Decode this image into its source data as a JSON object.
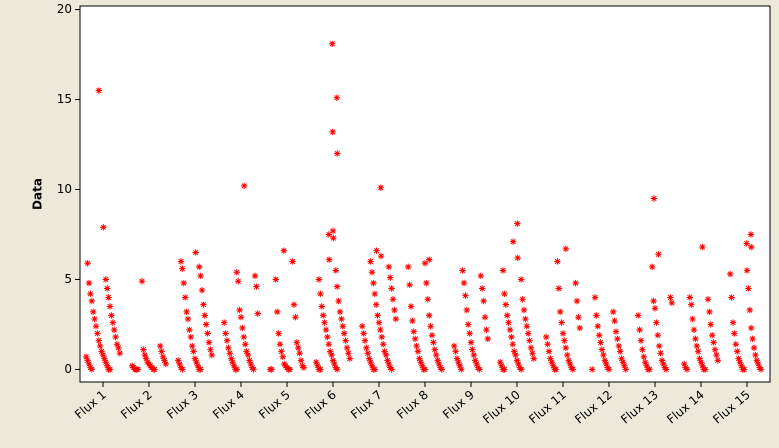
{
  "chart_data": {
    "type": "strip",
    "y_label": "Data",
    "categories": [
      "Flux 1",
      "Flux 2",
      "Flux 3",
      "Flux 4",
      "Flux 5",
      "Flux 6",
      "Flux 7",
      "Flux 8",
      "Flux 9",
      "Flux 10",
      "Flux 11",
      "Flux 12",
      "Flux 13",
      "Flux 14",
      "Flux 15"
    ],
    "values": [
      [
        15.5,
        7.9,
        5.9,
        5.0,
        4.8,
        4.5,
        4.2,
        4.0,
        3.8,
        3.5,
        3.2,
        3.0,
        2.8,
        2.6,
        2.4,
        2.2,
        2.0,
        1.8,
        1.6,
        1.4,
        1.3,
        1.2,
        1.0,
        0.9,
        0.8,
        0.7,
        0.6,
        0.5,
        0.4,
        0.3,
        0.2,
        0.1,
        0,
        0,
        0
      ],
      [
        4.9,
        1.3,
        1.1,
        1.0,
        0.8,
        0.7,
        0.6,
        0.5,
        0.4,
        0.3,
        0.3,
        0.2,
        0.2,
        0.1,
        0.1,
        0,
        0,
        0,
        0,
        0
      ],
      [
        6.5,
        6.0,
        5.7,
        5.6,
        5.2,
        4.8,
        4.4,
        4.0,
        3.6,
        3.2,
        3.0,
        2.8,
        2.5,
        2.2,
        2.0,
        1.8,
        1.5,
        1.3,
        1.1,
        1.0,
        0.8,
        0.6,
        0.5,
        0.4,
        0.3,
        0.2,
        0.1,
        0,
        0,
        0
      ],
      [
        10.2,
        5.4,
        5.2,
        4.9,
        4.6,
        3.3,
        3.1,
        2.9,
        2.6,
        2.3,
        2.0,
        1.8,
        1.6,
        1.4,
        1.2,
        1.0,
        0.9,
        0.8,
        0.6,
        0.5,
        0.4,
        0.3,
        0.2,
        0.1,
        0,
        0,
        0
      ],
      [
        6.6,
        6.0,
        5.0,
        3.6,
        3.2,
        2.9,
        2.0,
        1.5,
        1.4,
        1.2,
        1.0,
        0.9,
        0.7,
        0.5,
        0.3,
        0.2,
        0.2,
        0.1,
        0.1,
        0,
        0,
        0,
        0
      ],
      [
        18.1,
        15.1,
        13.2,
        12.0,
        7.7,
        7.5,
        7.3,
        6.1,
        5.5,
        5.0,
        4.6,
        4.2,
        3.8,
        3.5,
        3.2,
        3.0,
        2.8,
        2.6,
        2.4,
        2.2,
        2.0,
        1.8,
        1.6,
        1.4,
        1.2,
        1.0,
        0.9,
        0.8,
        0.6,
        0.5,
        0.4,
        0.3,
        0.2,
        0.1,
        0,
        0,
        0
      ],
      [
        10.1,
        6.6,
        6.3,
        6.0,
        5.7,
        5.4,
        5.1,
        4.8,
        4.5,
        4.2,
        3.9,
        3.6,
        3.3,
        3.0,
        2.8,
        2.6,
        2.4,
        2.2,
        2.0,
        1.8,
        1.6,
        1.4,
        1.2,
        1.0,
        0.9,
        0.8,
        0.6,
        0.5,
        0.4,
        0.3,
        0.2,
        0.1,
        0,
        0,
        0
      ],
      [
        6.1,
        5.9,
        5.7,
        4.8,
        4.7,
        3.9,
        3.5,
        3.0,
        2.7,
        2.4,
        2.1,
        1.9,
        1.7,
        1.5,
        1.3,
        1.1,
        1.0,
        0.8,
        0.6,
        0.5,
        0.4,
        0.3,
        0.2,
        0.1,
        0,
        0,
        0
      ],
      [
        5.5,
        5.2,
        4.8,
        4.5,
        4.1,
        3.8,
        3.3,
        2.9,
        2.5,
        2.2,
        2.0,
        1.7,
        1.5,
        1.3,
        1.1,
        1.0,
        0.8,
        0.6,
        0.5,
        0.4,
        0.3,
        0.2,
        0.1,
        0,
        0
      ],
      [
        8.1,
        7.1,
        6.2,
        5.5,
        5.0,
        4.2,
        3.9,
        3.6,
        3.3,
        3.0,
        2.8,
        2.6,
        2.4,
        2.2,
        2.0,
        1.8,
        1.6,
        1.4,
        1.2,
        1.0,
        0.9,
        0.8,
        0.6,
        0.5,
        0.4,
        0.3,
        0.2,
        0.1,
        0,
        0,
        0
      ],
      [
        6.7,
        6.0,
        4.8,
        4.5,
        3.8,
        3.2,
        2.9,
        2.6,
        2.3,
        2.0,
        1.8,
        1.6,
        1.4,
        1.2,
        1.0,
        0.8,
        0.6,
        0.5,
        0.4,
        0.3,
        0.2,
        0.1,
        0,
        0,
        0
      ],
      [
        4.0,
        3.2,
        3.0,
        2.7,
        2.4,
        2.1,
        1.9,
        1.7,
        1.5,
        1.3,
        1.1,
        1.0,
        0.8,
        0.6,
        0.5,
        0.4,
        0.3,
        0.2,
        0.1,
        0,
        0,
        0
      ],
      [
        9.5,
        6.4,
        5.7,
        4.0,
        3.8,
        3.7,
        3.4,
        3.0,
        2.6,
        2.2,
        1.9,
        1.6,
        1.3,
        1.1,
        0.9,
        0.7,
        0.5,
        0.4,
        0.3,
        0.2,
        0.1,
        0,
        0,
        0
      ],
      [
        6.8,
        4.0,
        3.9,
        3.6,
        3.2,
        2.8,
        2.5,
        2.2,
        1.9,
        1.7,
        1.5,
        1.3,
        1.1,
        1.0,
        0.8,
        0.6,
        0.5,
        0.4,
        0.3,
        0.2,
        0.1,
        0,
        0,
        0
      ],
      [
        7.5,
        7.0,
        6.8,
        5.5,
        5.3,
        4.5,
        4.0,
        3.3,
        2.6,
        2.3,
        2.0,
        1.7,
        1.4,
        1.2,
        1.0,
        0.8,
        0.6,
        0.5,
        0.4,
        0.3,
        0.2,
        0.1,
        0,
        0,
        0
      ]
    ],
    "color": "#ff0000",
    "ylim": [
      -0.7,
      20.2
    ],
    "yticks": [
      0,
      5,
      10,
      15,
      20
    ]
  }
}
